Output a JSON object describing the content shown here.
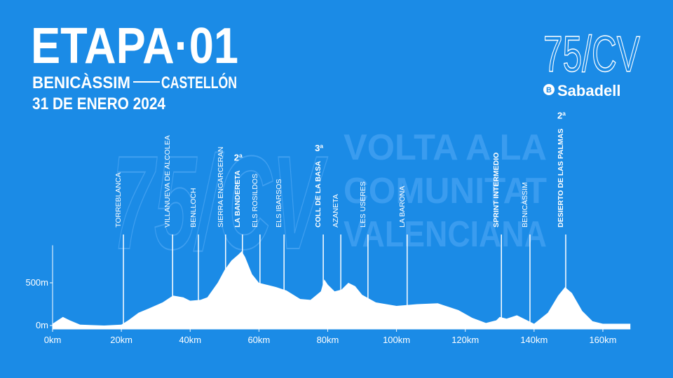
{
  "header": {
    "title": "ETAPA·01",
    "start": "BENICÀSSIM",
    "finish": "CASTELLÓN",
    "date": "31 DE ENERO 2024"
  },
  "logo": {
    "mark": "75/CV",
    "sponsor_icon": "B",
    "sponsor": "Sabadell"
  },
  "watermark": {
    "mark": "75/CV",
    "lines": [
      "VOLTA A LA",
      "COMUNITAT",
      "VALENCIANA"
    ]
  },
  "chart_data": {
    "type": "area",
    "x": [
      0,
      3,
      5,
      8,
      15,
      20,
      22,
      25,
      28,
      32,
      35,
      38,
      40,
      43,
      45,
      48,
      50,
      52,
      54,
      55,
      56,
      58,
      60,
      62,
      65,
      68,
      72,
      75,
      78,
      79,
      80,
      82,
      84,
      86,
      88,
      90,
      94,
      100,
      106,
      112,
      115,
      118,
      122,
      126,
      129,
      130,
      132,
      135,
      138,
      140,
      144,
      147,
      149,
      151,
      154,
      157,
      160,
      168
    ],
    "series": [
      {
        "color": "#ffffff",
        "values": [
          20,
          100,
          60,
          10,
          0,
          10,
          60,
          150,
          200,
          270,
          350,
          330,
          290,
          300,
          330,
          500,
          650,
          760,
          830,
          870,
          800,
          600,
          500,
          480,
          450,
          410,
          310,
          300,
          400,
          540,
          480,
          400,
          420,
          500,
          460,
          360,
          270,
          230,
          250,
          260,
          220,
          180,
          90,
          30,
          60,
          100,
          80,
          120,
          60,
          20,
          150,
          350,
          450,
          380,
          170,
          50,
          20,
          20
        ]
      }
    ],
    "xlim": [
      0,
      168
    ],
    "ylim": [
      0,
      940
    ],
    "xticks": [
      {
        "value": 0,
        "label": "0km"
      },
      {
        "value": 20,
        "label": "20km"
      },
      {
        "value": 40,
        "label": "40km"
      },
      {
        "value": 60,
        "label": "60km"
      },
      {
        "value": 80,
        "label": "80km"
      },
      {
        "value": 100,
        "label": "100km"
      },
      {
        "value": 120,
        "label": "120km"
      },
      {
        "value": 140,
        "label": "140km"
      },
      {
        "value": 160,
        "label": "160km"
      }
    ],
    "yticks": [
      {
        "value": 0,
        "label": "0m"
      },
      {
        "value": 500,
        "label": "500m"
      }
    ],
    "landmarks": [
      {
        "km": 20.6,
        "label": "TORREBLANCA"
      },
      {
        "km": 34.9,
        "label": "VILLANUEVA DE ALCOLEA"
      },
      {
        "km": 42.4,
        "label": "BENLLOCH"
      },
      {
        "km": 50.3,
        "label": "SIERRA ENGARCERAN"
      },
      {
        "km": 55.2,
        "label": "LA BANDERETA",
        "category": "2ª"
      },
      {
        "km": 60.3,
        "label": "ELS ROSILDOS"
      },
      {
        "km": 67.3,
        "label": "ELS IBARSOS"
      },
      {
        "km": 78.7,
        "label": "COLL DE LA BASA",
        "category": "3ª"
      },
      {
        "km": 83.8,
        "label": "AZANETA"
      },
      {
        "km": 91.7,
        "label": "LES USERES"
      },
      {
        "km": 103.1,
        "label": "LA BARONA"
      },
      {
        "km": 130.5,
        "label": "SPRINT INTERMEDIO",
        "bold": true
      },
      {
        "km": 138.8,
        "label": "BENICÀSSIM"
      },
      {
        "km": 149.2,
        "label": "DESIERTO DE LAS PALMAS",
        "category": "2ª"
      }
    ]
  }
}
